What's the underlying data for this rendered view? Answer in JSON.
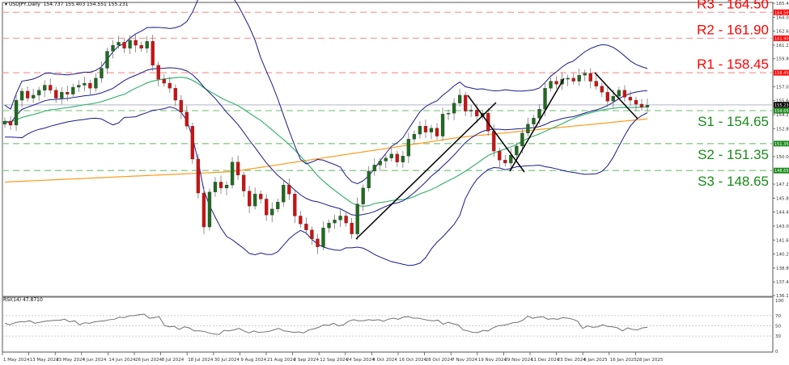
{
  "header": {
    "symbol": "USDJPY,Daily",
    "ohlc": "154.737 155.403 154.551 155.231"
  },
  "rsi_panel": {
    "label": "RSI(14) 47.8710",
    "levels": [
      100,
      70,
      50,
      30,
      0
    ]
  },
  "colors": {
    "resistance": "#ff0000",
    "resistance_line": "#f7a0a0",
    "support": "#1a8a1a",
    "support_line": "#8cc88c",
    "bull_candle": "#1e6b1e",
    "bear_candle": "#d01010",
    "bollinger": "#1a1a8c",
    "ma_green": "#3cb371",
    "ma_orange": "#ff9a1a",
    "trendline": "#000000",
    "rsi_line": "#707070",
    "current_price_tag": "#000000"
  },
  "chart_data": {
    "type": "candlestick",
    "title": "USDJPY, Daily",
    "instrument": "USDJPY",
    "timeframe": "Daily",
    "last_ohlc": {
      "open": 154.737,
      "high": 155.403,
      "low": 154.551,
      "close": 155.231
    },
    "ylim": [
      136.13,
      165.41
    ],
    "y_ticks": [
      165.41,
      164.01,
      162.61,
      161.21,
      159.85,
      157.05,
      155.65,
      154.25,
      152.85,
      150.05,
      147.29,
      145.89,
      144.49,
      143.09,
      141.69,
      140.29,
      138.89,
      137.49,
      136.13
    ],
    "x_tick_labels": [
      "1 May 2024",
      "13 May 2024",
      "23 May 2024",
      "4 Jun 2024",
      "14 Jun 2024",
      "26 Jun 2024",
      "8 Jul 2024",
      "18 Jul 2024",
      "30 Jul 2024",
      "9 Aug 2024",
      "21 Aug 2024",
      "2 Sep 2024",
      "12 Sep 2024",
      "24 Sep 2024",
      "4 Oct 2024",
      "16 Oct 2024",
      "28 Oct 2024",
      "7 Nov 2024",
      "19 Nov 2024",
      "29 Nov 2024",
      "11 Dec 2024",
      "23 Dec 2024",
      "6 Jan 2025",
      "16 Jan 2025",
      "28 Jan 2025"
    ],
    "levels": [
      {
        "name": "R3",
        "value": 164.5,
        "label": "R3 - 164.50",
        "tag": "164.500",
        "type": "resistance"
      },
      {
        "name": "R2",
        "value": 161.9,
        "label": "R2 - 161.90",
        "tag": "161.900",
        "type": "resistance"
      },
      {
        "name": "R1",
        "value": 158.45,
        "label": "R1 - 158.45",
        "tag": "158.450",
        "type": "resistance"
      },
      {
        "name": "S1",
        "value": 154.65,
        "label": "S1 - 154.65",
        "tag": "154.650",
        "type": "support"
      },
      {
        "name": "S2",
        "value": 151.35,
        "label": "S2 - 151.35",
        "tag": "151.350",
        "type": "support"
      },
      {
        "name": "S3",
        "value": 148.65,
        "label": "S3 - 148.65",
        "tag": "148.650",
        "type": "support"
      }
    ],
    "current_price": 155.231,
    "closes_approx": [
      153.6,
      153.2,
      155.7,
      156.6,
      155.9,
      156.2,
      156.7,
      157.2,
      156.7,
      155.9,
      156.5,
      156.3,
      157.0,
      157.2,
      157.4,
      156.9,
      157.9,
      158.9,
      160.6,
      161.2,
      161.5,
      160.9,
      161.7,
      161.2,
      160.9,
      161.6,
      159.2,
      157.8,
      157.4,
      156.9,
      155.7,
      154.5,
      153.1,
      149.8,
      146.4,
      143.0,
      146.5,
      147.5,
      146.9,
      147.2,
      149.5,
      148.2,
      146.6,
      145.1,
      146.3,
      145.8,
      144.2,
      144.8,
      145.5,
      147.2,
      146.3,
      144.1,
      143.3,
      142.7,
      141.8,
      141.0,
      142.9,
      143.4,
      143.7,
      144.1,
      143.4,
      142.3,
      145.3,
      146.9,
      148.6,
      149.2,
      149.6,
      149.9,
      150.3,
      149.5,
      150.1,
      151.8,
      152.3,
      153.1,
      152.5,
      152.9,
      152.1,
      154.3,
      154.4,
      155.4,
      156.2,
      154.6,
      154.7,
      154.1,
      154.4,
      152.6,
      150.6,
      149.7,
      149.4,
      150.2,
      151.1,
      152.4,
      153.3,
      153.9,
      154.8,
      156.9,
      157.6,
      157.3,
      157.8,
      157.9,
      157.6,
      158.2,
      158.4,
      157.6,
      157.1,
      156.5,
      155.6,
      156.1,
      156.7,
      156.0,
      155.7,
      155.3,
      155.0,
      155.2
    ],
    "rsi": {
      "period": 14,
      "last": 47.871,
      "ylim": [
        0,
        100
      ],
      "levels": [
        70,
        50,
        30
      ],
      "values_approx": [
        55,
        52,
        56,
        58,
        58,
        60,
        55,
        57,
        59,
        60,
        61,
        61,
        63,
        58,
        60,
        52,
        56,
        55,
        58,
        59,
        60,
        62,
        63,
        67,
        66,
        70,
        70,
        72,
        73,
        65,
        66,
        68,
        51,
        48,
        49,
        43,
        48,
        46,
        40,
        40,
        39,
        36,
        34,
        33,
        41,
        40,
        42,
        45,
        40,
        36,
        40,
        37,
        38,
        39,
        42,
        45,
        40,
        39,
        37,
        38,
        36,
        42,
        44,
        47,
        52,
        51,
        55,
        50,
        52,
        59,
        62,
        60,
        60,
        62,
        61,
        62,
        59,
        63,
        65,
        63,
        67,
        68,
        65,
        65,
        63,
        61,
        60,
        61,
        53,
        57,
        54,
        52,
        42,
        40,
        37,
        37,
        41,
        40,
        46,
        50,
        51,
        53,
        56,
        57,
        61,
        69,
        65,
        67,
        68,
        63,
        64,
        63,
        66,
        65,
        63,
        59,
        45,
        50,
        47,
        48,
        52,
        49,
        48,
        46,
        40,
        46,
        43,
        42,
        46,
        47
      ]
    },
    "indicators": [
      "Bollinger Bands (blue)",
      "Moving average (green)",
      "Moving average (orange)",
      "RSI(14)"
    ],
    "grid": false
  }
}
